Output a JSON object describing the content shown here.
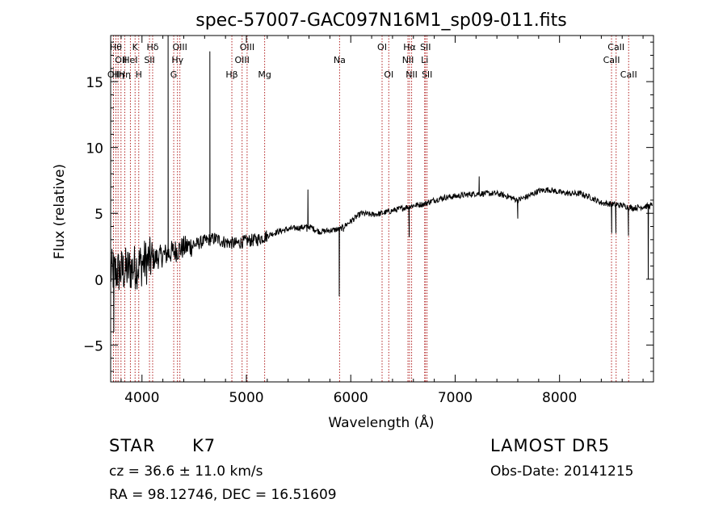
{
  "chart_data": {
    "type": "line",
    "title": "spec-57007-GAC097N16M1_sp09-011.fits",
    "xlabel": "Wavelength (Å)",
    "ylabel": "Flux (relative)",
    "xlim": [
      3700,
      8900
    ],
    "ylim": [
      -7.8,
      18.5
    ],
    "xticks": [
      4000,
      5000,
      6000,
      7000,
      8000
    ],
    "xtick_labels": [
      "4000",
      "5000",
      "6000",
      "7000",
      "8000"
    ],
    "yticks": [
      -5,
      0,
      5,
      10,
      15
    ],
    "ytick_labels": [
      "−5",
      "0",
      "5",
      "10",
      "15"
    ],
    "grid": false,
    "series": [
      {
        "continuum": [
          [
            3700,
            0.5
          ],
          [
            3800,
            0.6
          ],
          [
            3900,
            0.8
          ],
          [
            4000,
            1.2
          ],
          [
            4100,
            1.5
          ],
          [
            4200,
            1.8
          ],
          [
            4300,
            2.1
          ],
          [
            4400,
            2.4
          ],
          [
            4500,
            2.6
          ],
          [
            4600,
            2.9
          ],
          [
            4700,
            3.1
          ],
          [
            4800,
            2.8
          ],
          [
            4900,
            2.7
          ],
          [
            5000,
            2.9
          ],
          [
            5100,
            3.0
          ],
          [
            5200,
            3.3
          ],
          [
            5300,
            3.6
          ],
          [
            5400,
            3.8
          ],
          [
            5500,
            3.9
          ],
          [
            5600,
            4.0
          ],
          [
            5700,
            3.6
          ],
          [
            5800,
            3.7
          ],
          [
            5900,
            3.8
          ],
          [
            6000,
            4.4
          ],
          [
            6100,
            5.0
          ],
          [
            6200,
            4.9
          ],
          [
            6300,
            5.0
          ],
          [
            6400,
            5.2
          ],
          [
            6500,
            5.4
          ],
          [
            6600,
            5.6
          ],
          [
            6700,
            5.7
          ],
          [
            6800,
            6.0
          ],
          [
            6900,
            6.2
          ],
          [
            7000,
            6.3
          ],
          [
            7100,
            6.4
          ],
          [
            7200,
            6.5
          ],
          [
            7300,
            6.5
          ],
          [
            7400,
            6.5
          ],
          [
            7500,
            6.3
          ],
          [
            7600,
            6.0
          ],
          [
            7700,
            6.3
          ],
          [
            7800,
            6.7
          ],
          [
            7900,
            6.8
          ],
          [
            8000,
            6.6
          ],
          [
            8100,
            6.5
          ],
          [
            8200,
            6.5
          ],
          [
            8300,
            6.2
          ],
          [
            8400,
            5.8
          ],
          [
            8500,
            5.7
          ],
          [
            8600,
            5.6
          ],
          [
            8700,
            5.4
          ],
          [
            8800,
            5.5
          ],
          [
            8900,
            5.6
          ]
        ],
        "features": [
          {
            "x": 3730,
            "y": -4.0
          },
          {
            "x": 4250,
            "y": 18.5
          },
          {
            "x": 4250,
            "y": 2.8
          },
          {
            "x": 4650,
            "y": 17.3
          },
          {
            "x": 4650,
            "y": 9.0
          },
          {
            "x": 4650,
            "y": 2.8
          },
          {
            "x": 5590,
            "y": 6.8
          },
          {
            "x": 5580,
            "y": 3.6
          },
          {
            "x": 5890,
            "y": -1.3
          },
          {
            "x": 5930,
            "y": 3.6
          },
          {
            "x": 6560,
            "y": 3.2
          },
          {
            "x": 7230,
            "y": 7.8
          },
          {
            "x": 7600,
            "y": 4.6
          },
          {
            "x": 8500,
            "y": 3.5
          },
          {
            "x": 8540,
            "y": 3.5
          },
          {
            "x": 8660,
            "y": 3.3
          },
          {
            "x": 8850,
            "y": 0.0
          }
        ]
      }
    ],
    "lines": [
      {
        "w": 3727,
        "label": "OII",
        "row": 2
      },
      {
        "w": 3750,
        "label": "Hθ",
        "row": 0
      },
      {
        "w": 3771,
        "label": "Hη",
        "row": 2
      },
      {
        "w": 3799,
        "label": "OII",
        "row": 1
      },
      {
        "w": 3835,
        "label": "Hη",
        "row": 2
      },
      {
        "w": 3889,
        "label": "HeI",
        "row": 1
      },
      {
        "w": 3934,
        "label": "K",
        "row": 0
      },
      {
        "w": 3969,
        "label": "H",
        "row": 2
      },
      {
        "w": 4072,
        "label": "SII",
        "row": 1
      },
      {
        "w": 4102,
        "label": "Hδ",
        "row": 0
      },
      {
        "w": 4304,
        "label": "G",
        "row": 2
      },
      {
        "w": 4340,
        "label": "Hγ",
        "row": 1
      },
      {
        "w": 4363,
        "label": "OIII",
        "row": 0
      },
      {
        "w": 4861,
        "label": "Hβ",
        "row": 2
      },
      {
        "w": 4959,
        "label": "OIII",
        "row": 1
      },
      {
        "w": 5007,
        "label": "OIII",
        "row": 0
      },
      {
        "w": 5175,
        "label": "Mg",
        "row": 2
      },
      {
        "w": 5893,
        "label": "Na",
        "row": 1
      },
      {
        "w": 6300,
        "label": "OI",
        "row": 0
      },
      {
        "w": 6364,
        "label": "OI",
        "row": 2
      },
      {
        "w": 6548,
        "label": "NII",
        "row": 1
      },
      {
        "w": 6563,
        "label": "Hα",
        "row": 0
      },
      {
        "w": 6583,
        "label": "NII",
        "row": 2
      },
      {
        "w": 6708,
        "label": "Li",
        "row": 1
      },
      {
        "w": 6716,
        "label": "SII",
        "row": 0
      },
      {
        "w": 6731,
        "label": "SII",
        "row": 2
      },
      {
        "w": 8498,
        "label": "CaII",
        "row": 1
      },
      {
        "w": 8542,
        "label": "CaII",
        "row": 0
      },
      {
        "w": 8662,
        "label": "CaII",
        "row": 2
      }
    ]
  },
  "info": {
    "class": "STAR",
    "subclass": "K7",
    "survey": "LAMOST  DR5",
    "cz": "cz = 36.6 ± 11.0 km/s",
    "obs_date": "Obs-Date: 20141215",
    "radec": "RA =  98.12746, DEC =  16.51609"
  },
  "colors": {
    "line_marker": "#b22222",
    "spectrum": "#000000"
  }
}
